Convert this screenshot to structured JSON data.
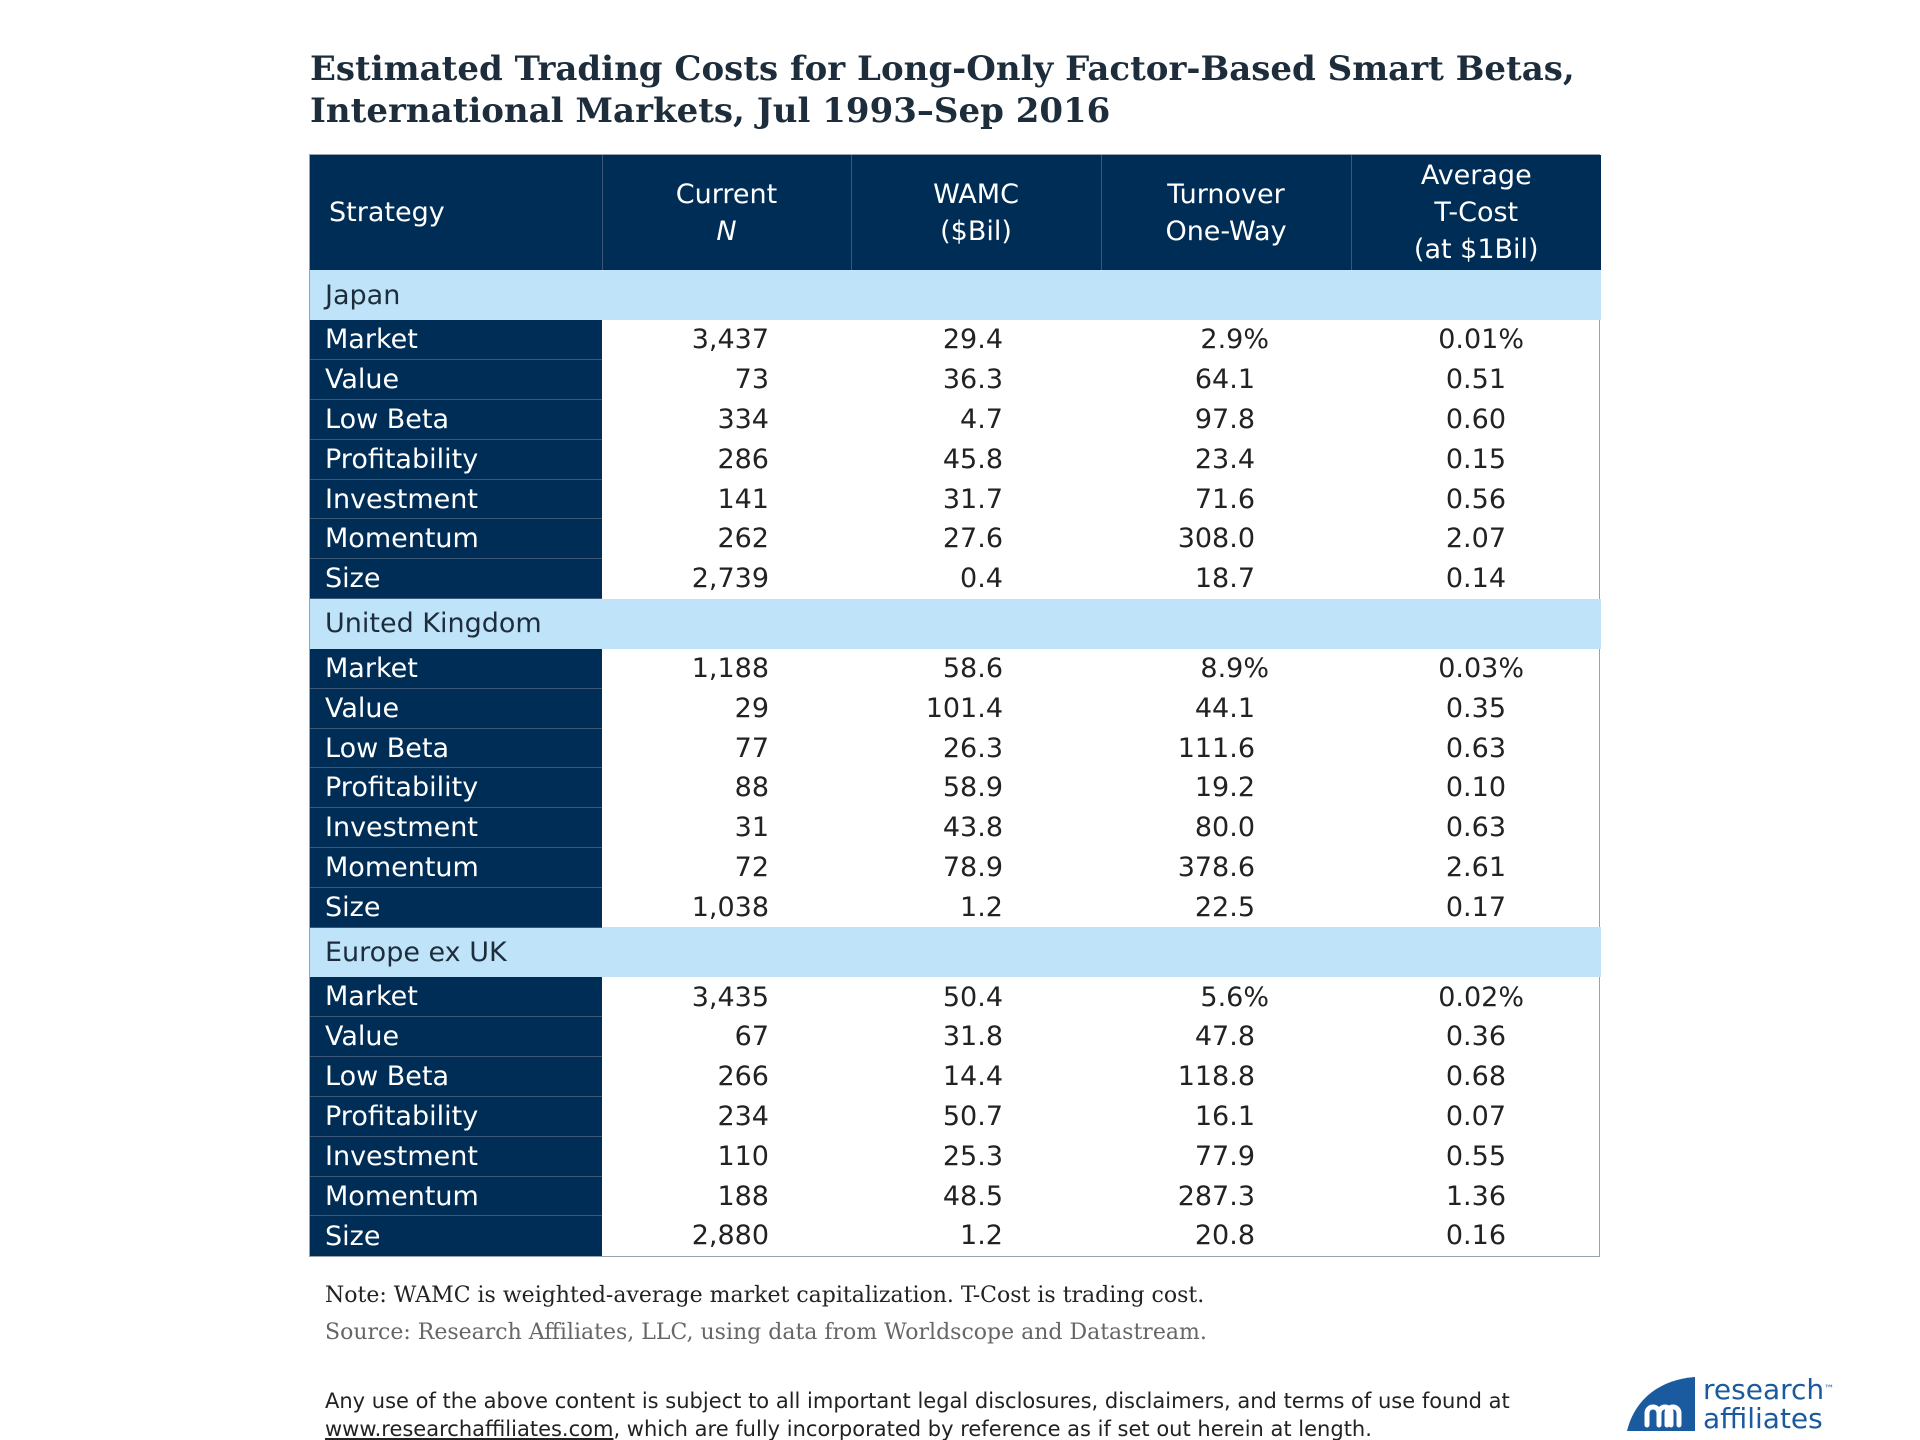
{
  "title_line1": "Estimated Trading Costs for Long-Only Factor-Based Smart Betas,",
  "title_line2": "International Markets, Jul 1993–Sep 2016",
  "header": {
    "strategy": "Strategy",
    "current_1": "Current",
    "current_2": "N",
    "wamc_1": "WAMC",
    "wamc_2": "($Bil)",
    "turnover_1": "Turnover",
    "turnover_2": "One-Way",
    "tcost_1": "Average",
    "tcost_2": "T-Cost",
    "tcost_3": "(at $1Bil)"
  },
  "note": "Note: WAMC is weighted-average market capitalization. T-Cost is trading cost.",
  "source": "Source: Research Affiliates, LLC, using data from Worldscope and Datastream.",
  "disclaimer_1": "Any use of the above content is subject to all important legal disclosures, disclaimers, and terms of use found at",
  "disclaimer_link": "www.researchaffiliates.com",
  "disclaimer_2": ", which are fully incorporated by reference as if set out herein at length.",
  "logo": {
    "line1": "research",
    "tm": "™",
    "line2": "affiliates",
    "icon": "research-affiliates-logo-mark",
    "color": "#1a5a9e"
  },
  "colors": {
    "header_bg": "#002d55",
    "group_bg": "#bfe4fa"
  },
  "chart_data": {
    "type": "table",
    "title": "Estimated Trading Costs for Long-Only Factor-Based Smart Betas, International Markets, Jul 1993–Sep 2016",
    "columns": [
      "Strategy",
      "Current N",
      "WAMC ($Bil)",
      "Turnover One-Way",
      "Average T-Cost (at $1Bil)"
    ],
    "groups": [
      {
        "name": "Japan",
        "rows": [
          [
            "Market",
            "3,437",
            "29.4",
            "2.9%",
            "0.01%"
          ],
          [
            "Value",
            "73",
            "36.3",
            "64.1",
            "0.51"
          ],
          [
            "Low Beta",
            "334",
            "4.7",
            "97.8",
            "0.60"
          ],
          [
            "Profitability",
            "286",
            "45.8",
            "23.4",
            "0.15"
          ],
          [
            "Investment",
            "141",
            "31.7",
            "71.6",
            "0.56"
          ],
          [
            "Momentum",
            "262",
            "27.6",
            "308.0",
            "2.07"
          ],
          [
            "Size",
            "2,739",
            "0.4",
            "18.7",
            "0.14"
          ]
        ]
      },
      {
        "name": "United Kingdom",
        "rows": [
          [
            "Market",
            "1,188",
            "58.6",
            "8.9%",
            "0.03%"
          ],
          [
            "Value",
            "29",
            "101.4",
            "44.1",
            "0.35"
          ],
          [
            "Low Beta",
            "77",
            "26.3",
            "111.6",
            "0.63"
          ],
          [
            "Profitability",
            "88",
            "58.9",
            "19.2",
            "0.10"
          ],
          [
            "Investment",
            "31",
            "43.8",
            "80.0",
            "0.63"
          ],
          [
            "Momentum",
            "72",
            "78.9",
            "378.6",
            "2.61"
          ],
          [
            "Size",
            "1,038",
            "1.2",
            "22.5",
            "0.17"
          ]
        ]
      },
      {
        "name": "Europe ex UK",
        "rows": [
          [
            "Market",
            "3,435",
            "50.4",
            "5.6%",
            "0.02%"
          ],
          [
            "Value",
            "67",
            "31.8",
            "47.8",
            "0.36"
          ],
          [
            "Low Beta",
            "266",
            "14.4",
            "118.8",
            "0.68"
          ],
          [
            "Profitability",
            "234",
            "50.7",
            "16.1",
            "0.07"
          ],
          [
            "Investment",
            "110",
            "25.3",
            "77.9",
            "0.55"
          ],
          [
            "Momentum",
            "188",
            "48.5",
            "287.3",
            "1.36"
          ],
          [
            "Size",
            "2,880",
            "1.2",
            "20.8",
            "0.16"
          ]
        ]
      }
    ]
  }
}
